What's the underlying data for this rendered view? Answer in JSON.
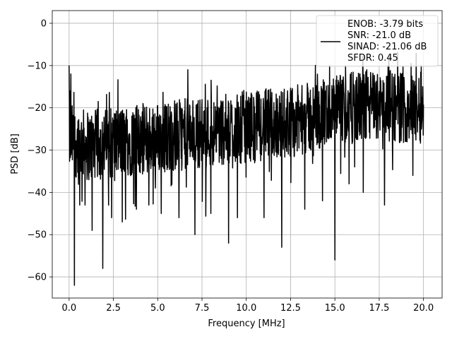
{
  "chart_data": {
    "type": "line",
    "title": "",
    "xlabel": "Frequency [MHz]",
    "ylabel": "PSD [dB]",
    "xlim": [
      -0.95,
      21.05
    ],
    "ylim": [
      -65,
      3
    ],
    "xticks": [
      0.0,
      2.5,
      5.0,
      7.5,
      10.0,
      12.5,
      15.0,
      17.5,
      20.0
    ],
    "xtick_labels": [
      "0.0",
      "2.5",
      "5.0",
      "7.5",
      "10.0",
      "12.5",
      "15.0",
      "17.5",
      "20.0"
    ],
    "yticks": [
      0,
      -10,
      -20,
      -30,
      -40,
      -50,
      -60
    ],
    "ytick_labels": [
      "0",
      "−10",
      "−20",
      "−30",
      "−40",
      "−50",
      "−60"
    ],
    "grid": true,
    "legend_position": "top-right",
    "legend": [
      "ENOB: -3.79 bits",
      "SNR: -21.0 dB",
      "SINAD: -21.06 dB",
      "SFDR: 0.45"
    ],
    "series": [
      {
        "color": "#000000",
        "trend": {
          "x": [
            0,
            0.3,
            1,
            2,
            3,
            4,
            5,
            6,
            7,
            8,
            9,
            10,
            11,
            12,
            13,
            14,
            15,
            16,
            17,
            18,
            19,
            20
          ],
          "y": [
            -27,
            -28,
            -29,
            -28.5,
            -28,
            -27.5,
            -27,
            -26.5,
            -26,
            -25.5,
            -25,
            -24.5,
            -24,
            -23.5,
            -23,
            -22,
            -21,
            -20,
            -19.5,
            -19.5,
            -20,
            -20
          ]
        },
        "peaks": {
          "x": [
            0.0,
            0.05,
            0.1,
            6.7,
            14.7,
            15.6,
            16.8,
            18.0,
            19.95
          ],
          "y": [
            -10,
            -16,
            -12,
            -11,
            -10,
            -10,
            -11,
            -10,
            -15
          ]
        },
        "notches": {
          "x": [
            0.3,
            0.6,
            0.9,
            1.3,
            1.9,
            2.4,
            3.0,
            3.8,
            4.5,
            5.2,
            6.2,
            7.1,
            8.0,
            9.0,
            9.5,
            11.0,
            12.0,
            13.3,
            14.3,
            15.0,
            15.8,
            16.6,
            17.8,
            19.4
          ],
          "y": [
            -62,
            -43,
            -43,
            -49,
            -58,
            -46,
            -47,
            -44,
            -43,
            -45,
            -46,
            -50,
            -45,
            -52,
            -46,
            -46,
            -53,
            -44,
            -42,
            -56,
            -38,
            -40,
            -43,
            -36
          ]
        }
      }
    ]
  }
}
